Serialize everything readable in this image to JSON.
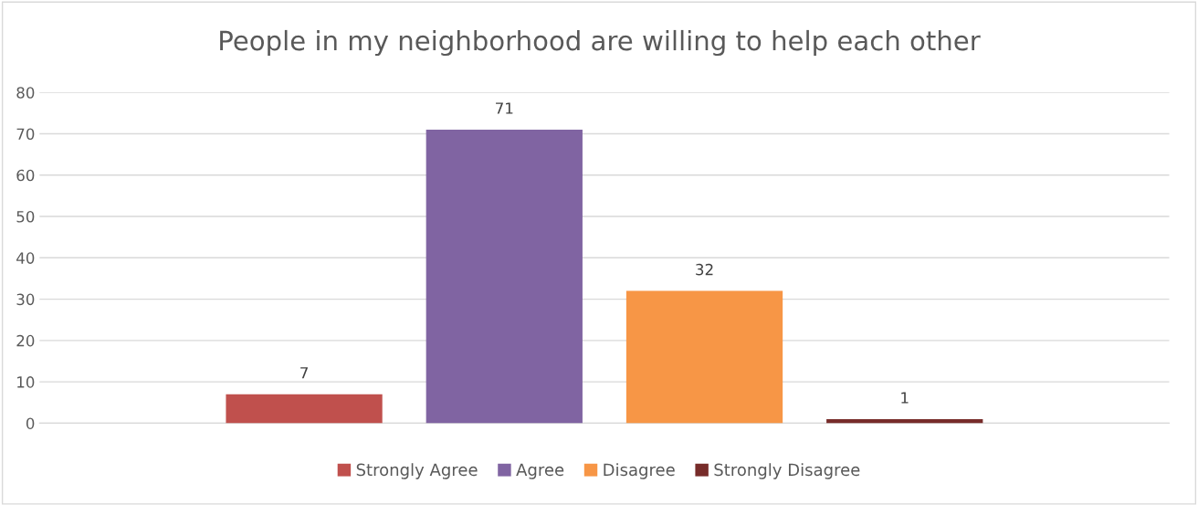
{
  "chart_data": {
    "type": "bar",
    "title": "People in my neighborhood are willing to help each other",
    "categories": [
      null
    ],
    "series": [
      {
        "name": "Strongly Agree",
        "color": "#c0504d",
        "values": [
          7
        ]
      },
      {
        "name": "Agree",
        "color": "#8064a2",
        "values": [
          71
        ]
      },
      {
        "name": "Disagree",
        "color": "#f79646",
        "values": [
          32
        ]
      },
      {
        "name": "Strongly Disagree",
        "color": "#772c2a",
        "values": [
          1
        ]
      }
    ],
    "ylim": [
      0,
      80
    ],
    "yticks": [
      0,
      10,
      20,
      30,
      40,
      50,
      60,
      70,
      80
    ],
    "grid": "y",
    "legend": "bottom",
    "data_labels": true
  }
}
